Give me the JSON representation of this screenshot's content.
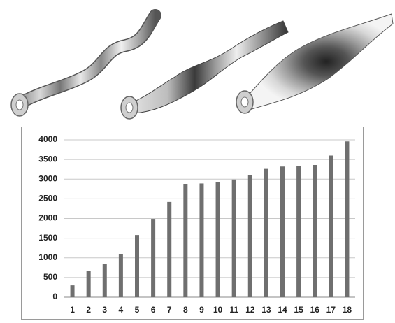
{
  "chart_data": {
    "type": "bar",
    "title": "",
    "xlabel": "",
    "ylabel": "",
    "categories": [
      "1",
      "2",
      "3",
      "4",
      "5",
      "6",
      "7",
      "8",
      "9",
      "10",
      "11",
      "12",
      "13",
      "14",
      "15",
      "16",
      "17",
      "18"
    ],
    "values": [
      300,
      670,
      850,
      1090,
      1580,
      1990,
      2420,
      2880,
      2890,
      2920,
      2990,
      3110,
      3260,
      3320,
      3330,
      3360,
      3600,
      3960
    ],
    "ylim": [
      0,
      4000
    ],
    "yticks": [
      0,
      500,
      1000,
      1500,
      2000,
      2500,
      3000,
      3500,
      4000
    ],
    "grid": true,
    "legend": "none",
    "bar_color": "#6f6f6f",
    "grid_color": "#c8c8c8"
  },
  "illustration": {
    "description_items": [
      "tube-mode-shape-1-icon",
      "tube-mode-shape-2-icon",
      "tube-mode-shape-3-icon"
    ]
  }
}
